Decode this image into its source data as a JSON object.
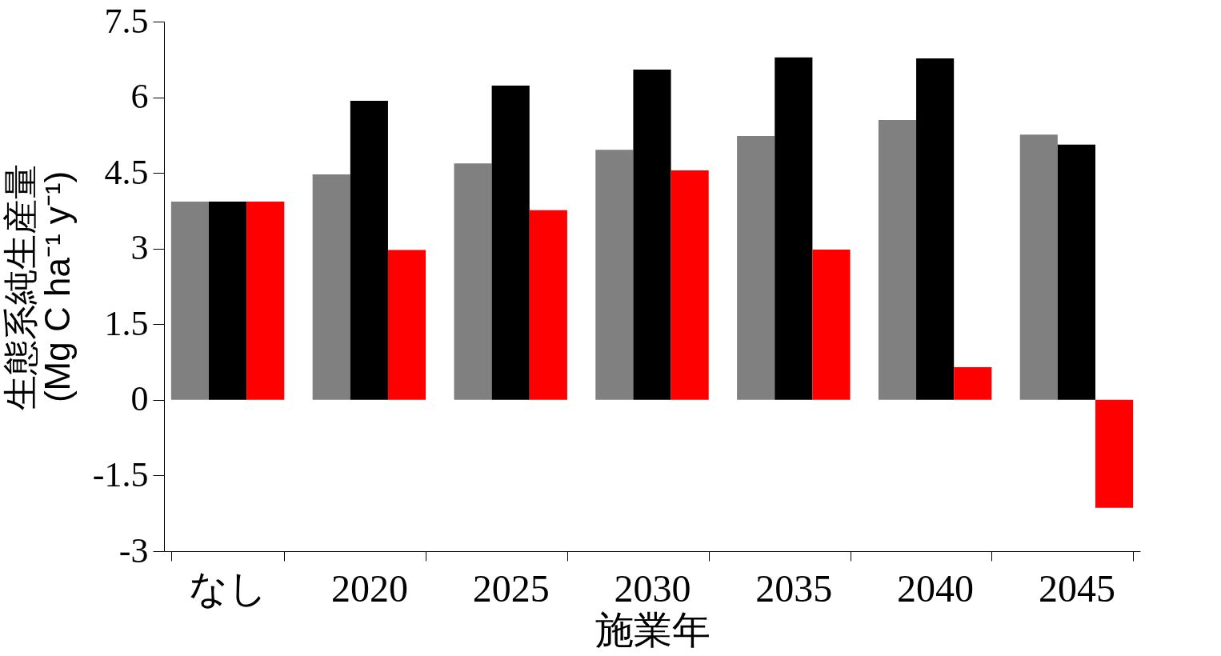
{
  "chart_data": {
    "type": "bar",
    "xlabel": "施業年",
    "ylabel": [
      "生態系純生産量",
      "(Mg C ha⁻¹ y⁻¹)"
    ],
    "categories": [
      "なし",
      "2020",
      "2025",
      "2030",
      "2035",
      "2040",
      "2045"
    ],
    "series": [
      {
        "color": "#808080",
        "values": [
          3.93,
          4.47,
          4.69,
          4.96,
          5.23,
          5.55,
          5.26
        ]
      },
      {
        "color": "#000000",
        "values": [
          3.93,
          5.93,
          6.23,
          6.55,
          6.79,
          6.77,
          5.06
        ]
      },
      {
        "color": "#ff0000",
        "values": [
          3.93,
          2.97,
          3.76,
          4.55,
          2.98,
          0.65,
          -2.14
        ]
      }
    ],
    "ylim": [
      -3,
      7.5
    ],
    "yticks": [
      -3,
      -1.5,
      0,
      1.5,
      3,
      4.5,
      6,
      7.5
    ],
    "grid": false,
    "legend": false
  }
}
